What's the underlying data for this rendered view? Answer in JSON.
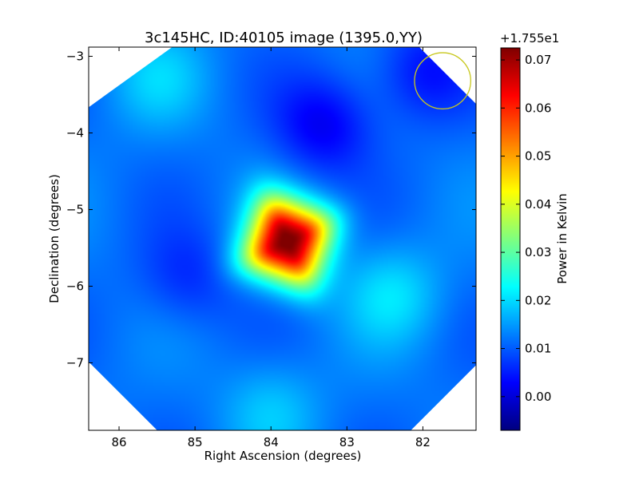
{
  "chart_data": {
    "type": "heatmap",
    "title": "3c145HC, ID:40105 image (1395.0,YY)",
    "xlabel": "Right Ascension (degrees)",
    "ylabel": "Declination (degrees)",
    "xlim": [
      86.4,
      81.3
    ],
    "ylim": [
      -7.88,
      -2.88
    ],
    "x_ticks": [
      86,
      85,
      84,
      83,
      82
    ],
    "x_tick_labels": [
      "86",
      "85",
      "84",
      "83",
      "82"
    ],
    "y_ticks": [
      -3,
      -4,
      -5,
      -6,
      -7
    ],
    "y_tick_labels": [
      "−3",
      "−4",
      "−5",
      "−6",
      "−7"
    ],
    "colorbar": {
      "label": "Power in Kelvin",
      "offset_text": "+1.755e1",
      "range": [
        -0.007,
        0.0725
      ],
      "ticks": [
        0.0,
        0.01,
        0.02,
        0.03,
        0.04,
        0.05,
        0.06,
        0.07
      ],
      "tick_labels": [
        "0.00",
        "0.01",
        "0.02",
        "0.03",
        "0.04",
        "0.05",
        "0.06",
        "0.07"
      ],
      "colormap": "jet"
    },
    "background_level": 0.012,
    "sources": [
      {
        "ra": 83.78,
        "dec": -5.42,
        "peak": 0.072,
        "shape": "rounded-square"
      }
    ],
    "features": [
      {
        "ra": 82.4,
        "dec": -6.1,
        "amp": 0.008
      },
      {
        "ra": 84.0,
        "dec": -7.6,
        "amp": 0.006
      },
      {
        "ra": 85.5,
        "dec": -3.3,
        "amp": 0.006
      },
      {
        "ra": 83.3,
        "dec": -3.9,
        "amp": -0.01
      },
      {
        "ra": 82.0,
        "dec": -3.2,
        "amp": -0.008
      },
      {
        "ra": 85.1,
        "dec": -5.9,
        "amp": -0.006
      }
    ],
    "beam_circle": {
      "ra": 81.74,
      "dec": -3.32,
      "radius_deg": 0.37,
      "color": "#c8c81e"
    },
    "octagon_clip_corner_deg": 1.1
  }
}
